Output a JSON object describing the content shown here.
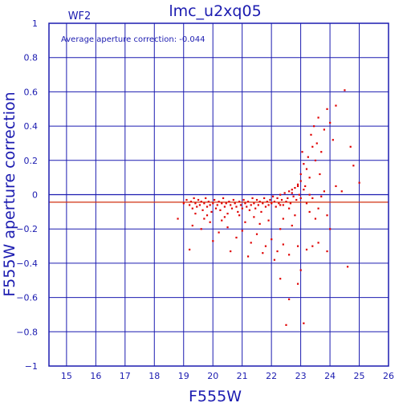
{
  "chart_data": {
    "type": "scatter",
    "title": "lmc_u2xq05",
    "panel_label": "WF2",
    "annotation": "Average aperture correction:  -0.044",
    "xlabel": "F555W",
    "ylabel": "F555W aperture correction",
    "xlim": [
      14.4,
      26
    ],
    "ylim": [
      -1,
      1
    ],
    "x_ticks": [
      "15",
      "16",
      "17",
      "18",
      "19",
      "20",
      "21",
      "22",
      "23",
      "24",
      "25",
      "26"
    ],
    "x_tick_values": [
      15,
      16,
      17,
      18,
      19,
      20,
      21,
      22,
      23,
      24,
      25,
      26
    ],
    "y_ticks": [
      "1",
      "0.8",
      "0.6",
      "0.4",
      "0.2",
      "0",
      "−0.2",
      "−0.4",
      "−0.6",
      "−0.8",
      "−1"
    ],
    "y_tick_values": [
      1,
      0.8,
      0.6,
      0.4,
      0.2,
      0,
      -0.2,
      -0.4,
      -0.6,
      -0.8,
      -1
    ],
    "grid": true,
    "zero_line": 0,
    "average_line": -0.044,
    "colors": {
      "axes": "#1b1bb0",
      "points": "#e00000",
      "avg_line": "#d03010"
    },
    "points": [
      [
        18.8,
        -0.14
      ],
      [
        19.0,
        -0.05
      ],
      [
        19.1,
        -0.03
      ],
      [
        19.2,
        -0.06
      ],
      [
        19.25,
        -0.04
      ],
      [
        19.3,
        -0.08
      ],
      [
        19.35,
        -0.02
      ],
      [
        19.4,
        -0.05
      ],
      [
        19.45,
        -0.07
      ],
      [
        19.5,
        -0.03
      ],
      [
        19.55,
        -0.06
      ],
      [
        19.6,
        -0.04
      ],
      [
        19.65,
        -0.09
      ],
      [
        19.7,
        -0.05
      ],
      [
        19.75,
        -0.02
      ],
      [
        19.8,
        -0.07
      ],
      [
        19.85,
        -0.04
      ],
      [
        19.9,
        -0.06
      ],
      [
        19.95,
        -0.1
      ],
      [
        20.0,
        -0.05
      ],
      [
        20.05,
        -0.03
      ],
      [
        20.1,
        -0.08
      ],
      [
        20.15,
        -0.06
      ],
      [
        20.2,
        -0.04
      ],
      [
        20.25,
        -0.09
      ],
      [
        20.3,
        -0.05
      ],
      [
        20.35,
        -0.02
      ],
      [
        20.4,
        -0.07
      ],
      [
        20.45,
        -0.05
      ],
      [
        20.5,
        -0.11
      ],
      [
        20.55,
        -0.04
      ],
      [
        20.6,
        -0.06
      ],
      [
        20.65,
        -0.08
      ],
      [
        20.7,
        -0.03
      ],
      [
        20.75,
        -0.05
      ],
      [
        20.8,
        -0.07
      ],
      [
        20.85,
        -0.1
      ],
      [
        20.9,
        -0.04
      ],
      [
        20.95,
        -0.06
      ],
      [
        21.0,
        -0.08
      ],
      [
        21.05,
        -0.03
      ],
      [
        21.1,
        -0.05
      ],
      [
        21.15,
        -0.07
      ],
      [
        21.2,
        -0.04
      ],
      [
        21.25,
        -0.09
      ],
      [
        21.3,
        -0.06
      ],
      [
        21.35,
        -0.02
      ],
      [
        21.4,
        -0.05
      ],
      [
        21.45,
        -0.08
      ],
      [
        21.5,
        -0.03
      ],
      [
        21.55,
        -0.06
      ],
      [
        21.6,
        -0.04
      ],
      [
        21.65,
        -0.1
      ],
      [
        21.7,
        -0.05
      ],
      [
        21.75,
        -0.02
      ],
      [
        21.8,
        -0.07
      ],
      [
        21.85,
        -0.04
      ],
      [
        21.9,
        -0.06
      ],
      [
        21.95,
        -0.03
      ],
      [
        22.0,
        -0.05
      ],
      [
        22.05,
        -0.01
      ],
      [
        22.1,
        -0.04
      ],
      [
        22.15,
        -0.07
      ],
      [
        22.2,
        -0.02
      ],
      [
        22.25,
        -0.05
      ],
      [
        22.3,
        0.0
      ],
      [
        22.35,
        -0.03
      ],
      [
        22.4,
        -0.06
      ],
      [
        22.45,
        0.01
      ],
      [
        22.5,
        -0.04
      ],
      [
        22.55,
        -0.02
      ],
      [
        22.6,
        0.02
      ],
      [
        22.65,
        -0.05
      ],
      [
        22.7,
        0.03
      ],
      [
        22.75,
        -0.01
      ],
      [
        22.8,
        0.04
      ],
      [
        22.85,
        -0.03
      ],
      [
        22.9,
        0.06
      ],
      [
        22.95,
        0.0
      ],
      [
        23.0,
        0.08
      ],
      [
        19.3,
        -0.18
      ],
      [
        19.6,
        -0.2
      ],
      [
        19.9,
        -0.16
      ],
      [
        20.2,
        -0.22
      ],
      [
        20.5,
        -0.19
      ],
      [
        20.8,
        -0.25
      ],
      [
        21.0,
        -0.21
      ],
      [
        21.3,
        -0.28
      ],
      [
        21.5,
        -0.23
      ],
      [
        21.8,
        -0.3
      ],
      [
        22.0,
        -0.26
      ],
      [
        22.2,
        -0.33
      ],
      [
        22.4,
        -0.29
      ],
      [
        22.6,
        -0.35
      ],
      [
        19.2,
        -0.32
      ],
      [
        20.0,
        -0.27
      ],
      [
        20.6,
        -0.33
      ],
      [
        21.2,
        -0.36
      ],
      [
        21.7,
        -0.34
      ],
      [
        22.1,
        -0.38
      ],
      [
        22.3,
        -0.49
      ],
      [
        22.6,
        -0.61
      ],
      [
        22.9,
        -0.52
      ],
      [
        23.0,
        -0.44
      ],
      [
        22.5,
        -0.76
      ],
      [
        23.1,
        -0.75
      ],
      [
        23.2,
        -0.32
      ],
      [
        23.4,
        -0.3
      ],
      [
        23.6,
        -0.28
      ],
      [
        23.9,
        -0.33
      ],
      [
        24.6,
        -0.42
      ],
      [
        22.9,
        -0.3
      ],
      [
        23.0,
        0.12
      ],
      [
        23.05,
        0.25
      ],
      [
        23.1,
        0.18
      ],
      [
        23.15,
        0.05
      ],
      [
        23.2,
        0.15
      ],
      [
        23.25,
        0.22
      ],
      [
        23.3,
        0.1
      ],
      [
        23.35,
        0.35
      ],
      [
        23.4,
        0.28
      ],
      [
        23.45,
        0.4
      ],
      [
        23.5,
        0.2
      ],
      [
        23.55,
        0.3
      ],
      [
        23.6,
        0.45
      ],
      [
        23.65,
        0.12
      ],
      [
        23.7,
        0.25
      ],
      [
        23.8,
        0.38
      ],
      [
        23.9,
        0.5
      ],
      [
        24.0,
        0.42
      ],
      [
        24.1,
        0.32
      ],
      [
        24.2,
        0.52
      ],
      [
        24.5,
        0.61
      ],
      [
        24.7,
        0.28
      ],
      [
        24.8,
        0.17
      ],
      [
        25.0,
        0.07
      ],
      [
        23.2,
        -0.05
      ],
      [
        23.3,
        -0.1
      ],
      [
        23.4,
        -0.02
      ],
      [
        23.5,
        -0.14
      ],
      [
        23.6,
        -0.08
      ],
      [
        23.7,
        -0.01
      ],
      [
        23.8,
        0.02
      ],
      [
        23.9,
        -0.12
      ],
      [
        24.0,
        -0.2
      ],
      [
        24.2,
        0.05
      ],
      [
        24.4,
        0.02
      ],
      [
        23.1,
        0.03
      ],
      [
        22.8,
        -0.12
      ],
      [
        22.4,
        -0.14
      ],
      [
        21.9,
        -0.15
      ],
      [
        21.4,
        -0.13
      ],
      [
        20.9,
        -0.12
      ],
      [
        20.4,
        -0.13
      ],
      [
        19.8,
        -0.12
      ],
      [
        19.4,
        -0.11
      ],
      [
        22.7,
        -0.18
      ],
      [
        22.3,
        -0.2
      ],
      [
        21.6,
        -0.17
      ],
      [
        21.1,
        -0.16
      ],
      [
        20.3,
        -0.15
      ],
      [
        19.7,
        -0.14
      ],
      [
        23.3,
        0.0
      ],
      [
        23.0,
        -0.02
      ],
      [
        22.9,
        0.05
      ],
      [
        22.7,
        0.01
      ],
      [
        22.6,
        -0.08
      ],
      [
        22.3,
        -0.06
      ]
    ]
  }
}
